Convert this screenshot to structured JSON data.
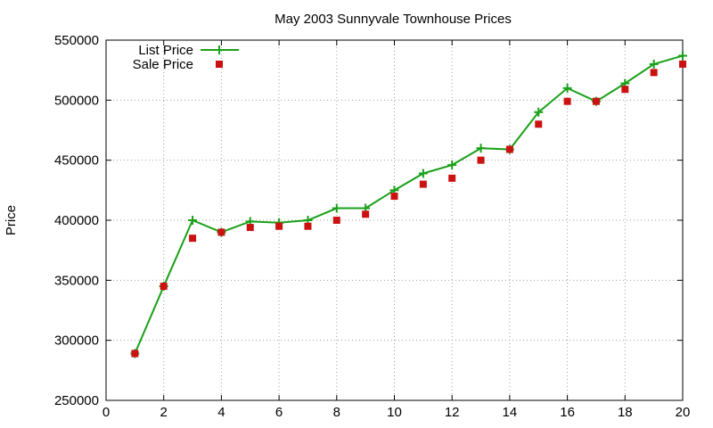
{
  "chart_data": {
    "type": "line",
    "title": "May 2003 Sunnyvale Townhouse Prices",
    "xlabel": "",
    "ylabel": "Price",
    "xlim": [
      0,
      20
    ],
    "ylim": [
      250000,
      550000
    ],
    "x_ticks": [
      0,
      2,
      4,
      6,
      8,
      10,
      12,
      14,
      16,
      18,
      20
    ],
    "y_ticks": [
      250000,
      300000,
      350000,
      400000,
      450000,
      500000,
      550000
    ],
    "grid": true,
    "legend_position": "top-left",
    "x": [
      1,
      2,
      3,
      4,
      5,
      6,
      7,
      8,
      9,
      10,
      11,
      12,
      13,
      14,
      15,
      16,
      17,
      18,
      19,
      20
    ],
    "series": [
      {
        "name": "List Price",
        "style": "line+cross",
        "color": "#1aa01a",
        "values": [
          289000,
          345000,
          400000,
          390000,
          399000,
          398000,
          400000,
          410000,
          410000,
          425000,
          439000,
          446000,
          460000,
          459000,
          490000,
          510000,
          499000,
          514000,
          530000,
          537000
        ]
      },
      {
        "name": "Sale Price",
        "style": "square",
        "color": "#cc1111",
        "values": [
          289000,
          345000,
          385000,
          390000,
          394000,
          395000,
          395000,
          400000,
          405000,
          420000,
          430000,
          435000,
          450000,
          459000,
          480000,
          499000,
          499000,
          509000,
          523000,
          530000
        ]
      }
    ]
  }
}
